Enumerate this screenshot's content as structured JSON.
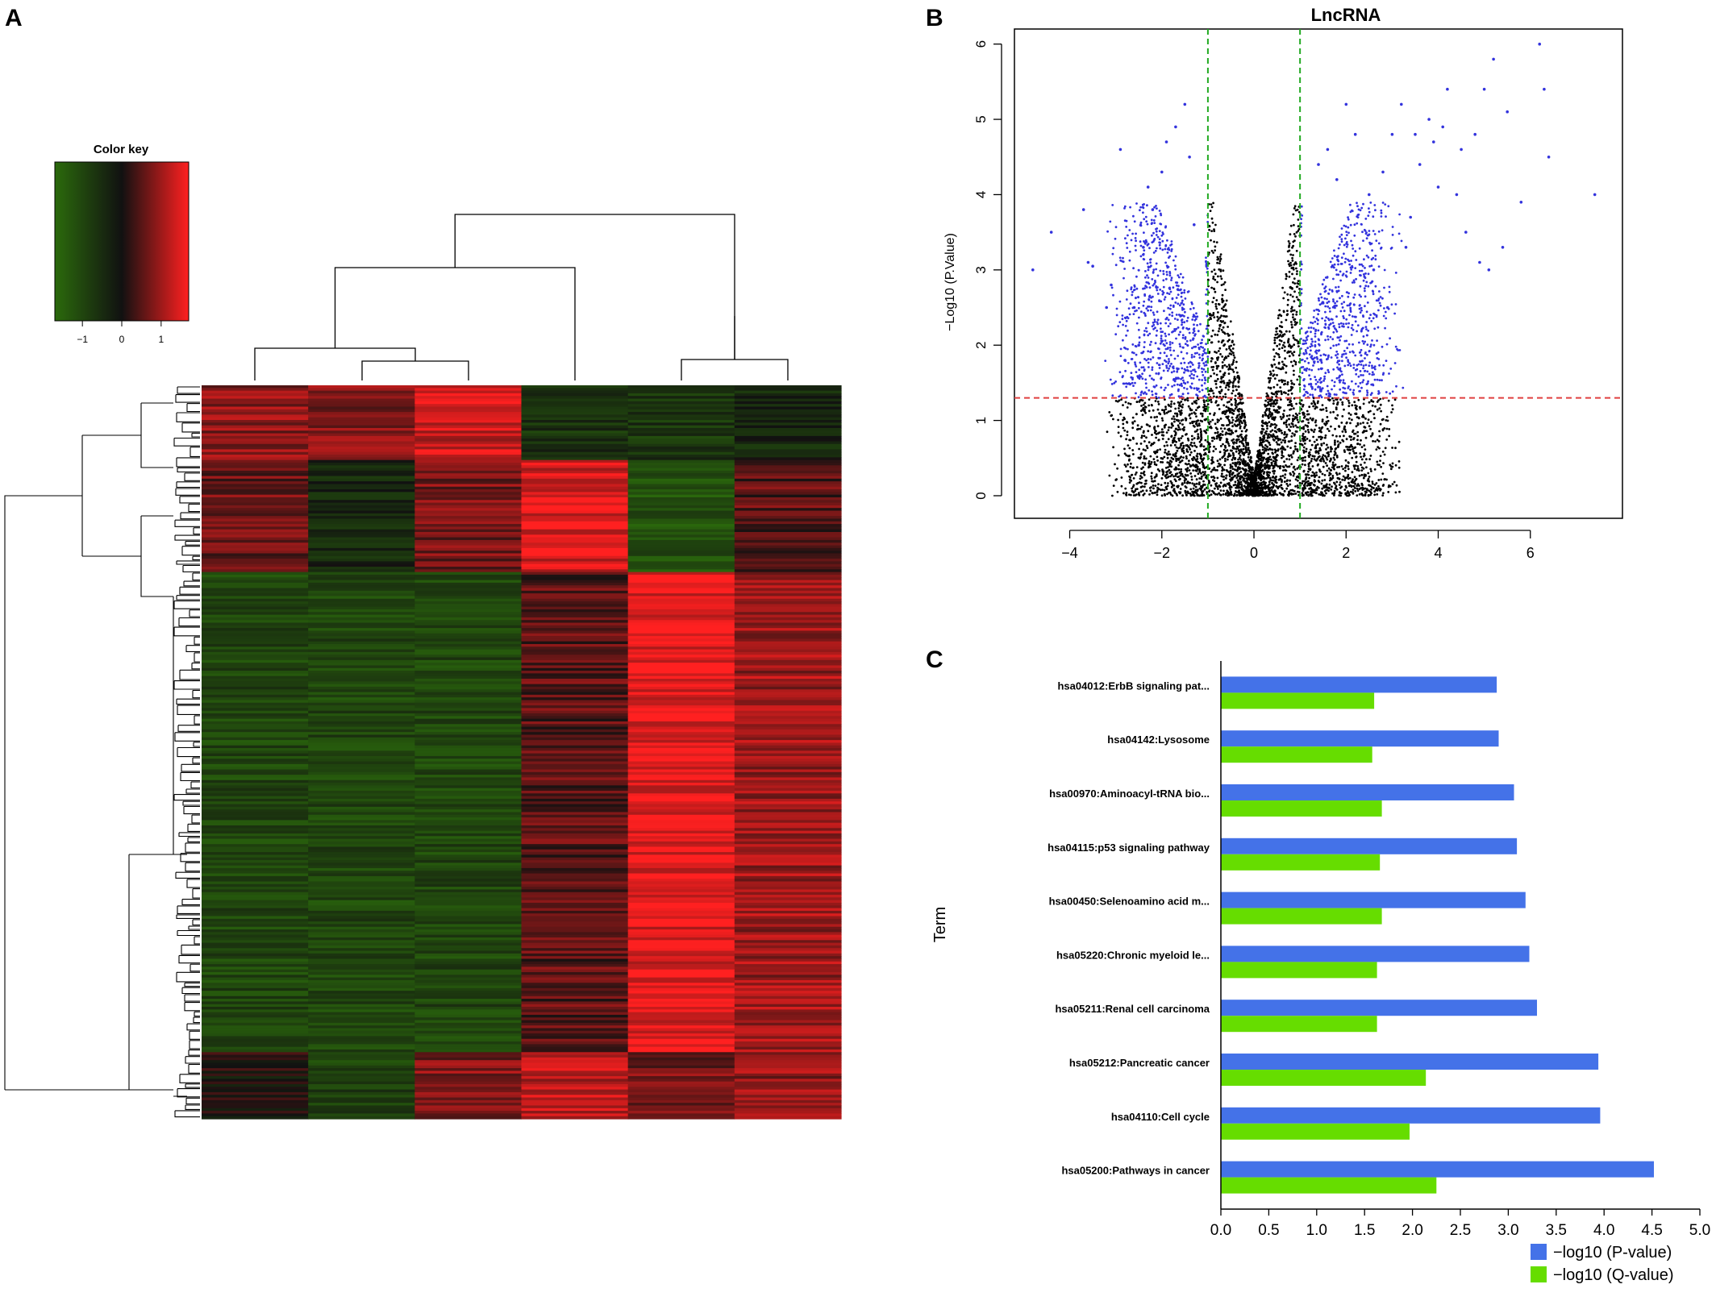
{
  "panels": {
    "a": "A",
    "b": "B",
    "c": "C"
  },
  "colors": {
    "heat_low": "#2b6a0c",
    "heat_mid": "#111111",
    "heat_high": "#ff2020",
    "volcano_sig": "#3333dd",
    "volcano_ns": "#000000",
    "vline": "#22aa22",
    "hline": "#e04040",
    "bar_p": "#4472e8",
    "bar_q": "#66dd00"
  },
  "heatmap": {
    "color_key_title": "Color key",
    "color_key_ticks": [
      "−1",
      "0",
      "1"
    ],
    "color_key_range": [
      -1.7,
      1.7
    ],
    "columns": 6,
    "column_dendrogram_order": "((1,(2,3)),(4,(5,6)))",
    "row_blocks": [
      {
        "rows": 28,
        "values": [
          0.9,
          0.8,
          1.3,
          -0.6,
          -0.7,
          -0.4
        ]
      },
      {
        "rows": 42,
        "values": [
          0.6,
          -0.4,
          0.7,
          1.4,
          -1.2,
          0.5
        ]
      },
      {
        "rows": 180,
        "values": [
          -1.0,
          -1.0,
          -1.0,
          0.5,
          1.5,
          1.0
        ]
      },
      {
        "rows": 25,
        "values": [
          0.0,
          -0.9,
          0.8,
          1.2,
          0.7,
          0.9
        ]
      }
    ]
  },
  "chart_data": [
    {
      "type": "scatter",
      "title": "LncRNA",
      "xlabel": "",
      "ylabel": "−Log10 (P.Value)",
      "xlim": [
        -5.2,
        8.0
      ],
      "ylim": [
        -0.3,
        6.2
      ],
      "xticks": [
        "−4",
        "−2",
        "0",
        "2",
        "4",
        "6"
      ],
      "xtick_values": [
        -4,
        -2,
        0,
        2,
        4,
        6
      ],
      "yticks": [
        "0",
        "1",
        "2",
        "3",
        "4",
        "5",
        "6"
      ],
      "ytick_values": [
        0,
        1,
        2,
        3,
        4,
        5,
        6
      ],
      "thresholds": {
        "log_fc": [
          -1,
          1
        ],
        "neg_log10_p": 1.3
      },
      "grid": false,
      "outlier_points": [
        [
          -4.8,
          3.0
        ],
        [
          -4.4,
          3.5
        ],
        [
          -3.7,
          3.8
        ],
        [
          -3.6,
          3.1
        ],
        [
          -3.5,
          3.05
        ],
        [
          -3.2,
          2.5
        ],
        [
          -3.1,
          2.8
        ],
        [
          -2.9,
          4.6
        ],
        [
          -2.6,
          2.5
        ],
        [
          -2.3,
          4.1
        ],
        [
          -2.2,
          3.8
        ],
        [
          -2.0,
          4.3
        ],
        [
          -1.9,
          4.7
        ],
        [
          -1.7,
          4.9
        ],
        [
          -1.5,
          5.2
        ],
        [
          -1.4,
          4.5
        ],
        [
          -1.3,
          3.6
        ],
        [
          -2.5,
          2.0
        ],
        [
          -2.8,
          1.8
        ],
        [
          -2.4,
          3.3
        ],
        [
          1.4,
          4.4
        ],
        [
          1.6,
          4.6
        ],
        [
          1.8,
          4.2
        ],
        [
          2.0,
          5.2
        ],
        [
          2.2,
          4.8
        ],
        [
          2.5,
          4.0
        ],
        [
          2.8,
          4.3
        ],
        [
          3.0,
          4.8
        ],
        [
          3.2,
          5.2
        ],
        [
          3.4,
          3.7
        ],
        [
          3.6,
          4.4
        ],
        [
          3.8,
          5.0
        ],
        [
          4.0,
          4.1
        ],
        [
          4.2,
          5.4
        ],
        [
          4.4,
          4.0
        ],
        [
          4.6,
          3.5
        ],
        [
          4.8,
          4.8
        ],
        [
          5.0,
          5.4
        ],
        [
          5.2,
          5.8
        ],
        [
          5.5,
          5.1
        ],
        [
          5.8,
          3.9
        ],
        [
          6.2,
          6.0
        ],
        [
          6.3,
          5.4
        ],
        [
          6.4,
          4.5
        ],
        [
          7.4,
          4.0
        ],
        [
          5.4,
          3.3
        ],
        [
          4.9,
          3.1
        ],
        [
          3.3,
          3.3
        ],
        [
          2.9,
          2.5
        ],
        [
          2.6,
          3.0
        ],
        [
          3.9,
          4.7
        ],
        [
          4.5,
          4.6
        ],
        [
          4.1,
          4.9
        ],
        [
          3.5,
          4.8
        ],
        [
          5.1,
          3.0
        ]
      ],
      "bulk_description_note": ""
    },
    {
      "type": "bar",
      "orientation": "horizontal",
      "ylabel": "Term",
      "xlabel": "",
      "xlim": [
        0,
        5.0
      ],
      "xticks": [
        "0.0",
        "0.5",
        "1.0",
        "1.5",
        "2.0",
        "2.5",
        "3.0",
        "3.5",
        "4.0",
        "4.5",
        "5.0"
      ],
      "xtick_values": [
        0,
        0.5,
        1.0,
        1.5,
        2.0,
        2.5,
        3.0,
        3.5,
        4.0,
        4.5,
        5.0
      ],
      "categories": [
        "hsa04012:ErbB signaling pat...",
        "hsa04142:Lysosome",
        "hsa00970:Aminoacyl-tRNA bio...",
        "hsa04115:p53 signaling pathway",
        "hsa00450:Selenoamino acid m...",
        "hsa05220:Chronic myeloid le...",
        "hsa05211:Renal cell carcinoma",
        "hsa05212:Pancreatic cancer",
        "hsa04110:Cell cycle",
        "hsa05200:Pathways in cancer"
      ],
      "series": [
        {
          "name": "−log10 (P-value)",
          "values": [
            2.88,
            2.9,
            3.06,
            3.09,
            3.18,
            3.22,
            3.3,
            3.94,
            3.96,
            4.52
          ]
        },
        {
          "name": "−log10 (Q-value)",
          "values": [
            1.6,
            1.58,
            1.68,
            1.66,
            1.68,
            1.63,
            1.63,
            2.14,
            1.97,
            2.25
          ]
        }
      ],
      "legend": "bottom-right"
    }
  ]
}
